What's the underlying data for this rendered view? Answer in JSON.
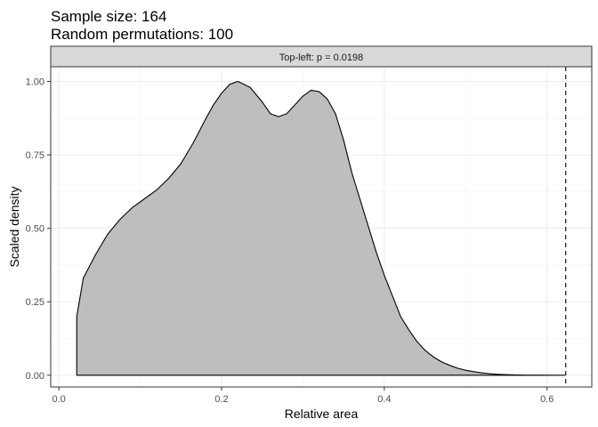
{
  "chart_data": {
    "type": "area",
    "title_lines": [
      "Sample size: 164",
      "Random permutations: 100"
    ],
    "facet_label": "Top-left: p = 0.0198",
    "xlabel": "Relative area",
    "ylabel": "Scaled density",
    "xlim": [
      -0.01,
      0.655
    ],
    "ylim": [
      -0.04,
      1.05
    ],
    "x_ticks": [
      0.0,
      0.2,
      0.4,
      0.6
    ],
    "x_tick_labels": [
      "0.0",
      "0.2",
      "0.4",
      "0.6"
    ],
    "y_ticks": [
      0.0,
      0.25,
      0.5,
      0.75,
      1.0
    ],
    "y_tick_labels": [
      "0.00",
      "0.25",
      "0.50",
      "0.75",
      "1.00"
    ],
    "grid": true,
    "fill_color": "#bebebe",
    "line_color": "#000000",
    "observed_value": 0.623,
    "x": [
      0.022,
      0.03,
      0.045,
      0.06,
      0.075,
      0.09,
      0.105,
      0.12,
      0.135,
      0.15,
      0.165,
      0.18,
      0.19,
      0.2,
      0.21,
      0.22,
      0.235,
      0.25,
      0.26,
      0.27,
      0.28,
      0.29,
      0.3,
      0.31,
      0.32,
      0.33,
      0.34,
      0.35,
      0.36,
      0.37,
      0.38,
      0.39,
      0.4,
      0.41,
      0.42,
      0.43,
      0.44,
      0.45,
      0.46,
      0.47,
      0.48,
      0.49,
      0.5,
      0.51,
      0.52,
      0.53,
      0.54,
      0.55,
      0.56,
      0.575,
      0.59,
      0.605,
      0.622
    ],
    "y": [
      0.2,
      0.33,
      0.41,
      0.48,
      0.53,
      0.57,
      0.6,
      0.63,
      0.67,
      0.72,
      0.79,
      0.87,
      0.92,
      0.96,
      0.99,
      1.0,
      0.98,
      0.93,
      0.89,
      0.88,
      0.89,
      0.92,
      0.95,
      0.97,
      0.965,
      0.94,
      0.89,
      0.8,
      0.69,
      0.6,
      0.51,
      0.42,
      0.34,
      0.27,
      0.2,
      0.155,
      0.115,
      0.085,
      0.063,
      0.046,
      0.034,
      0.024,
      0.017,
      0.012,
      0.008,
      0.005,
      0.003,
      0.002,
      0.001,
      0.0005,
      0.0002,
      0.0001,
      0.0
    ]
  }
}
